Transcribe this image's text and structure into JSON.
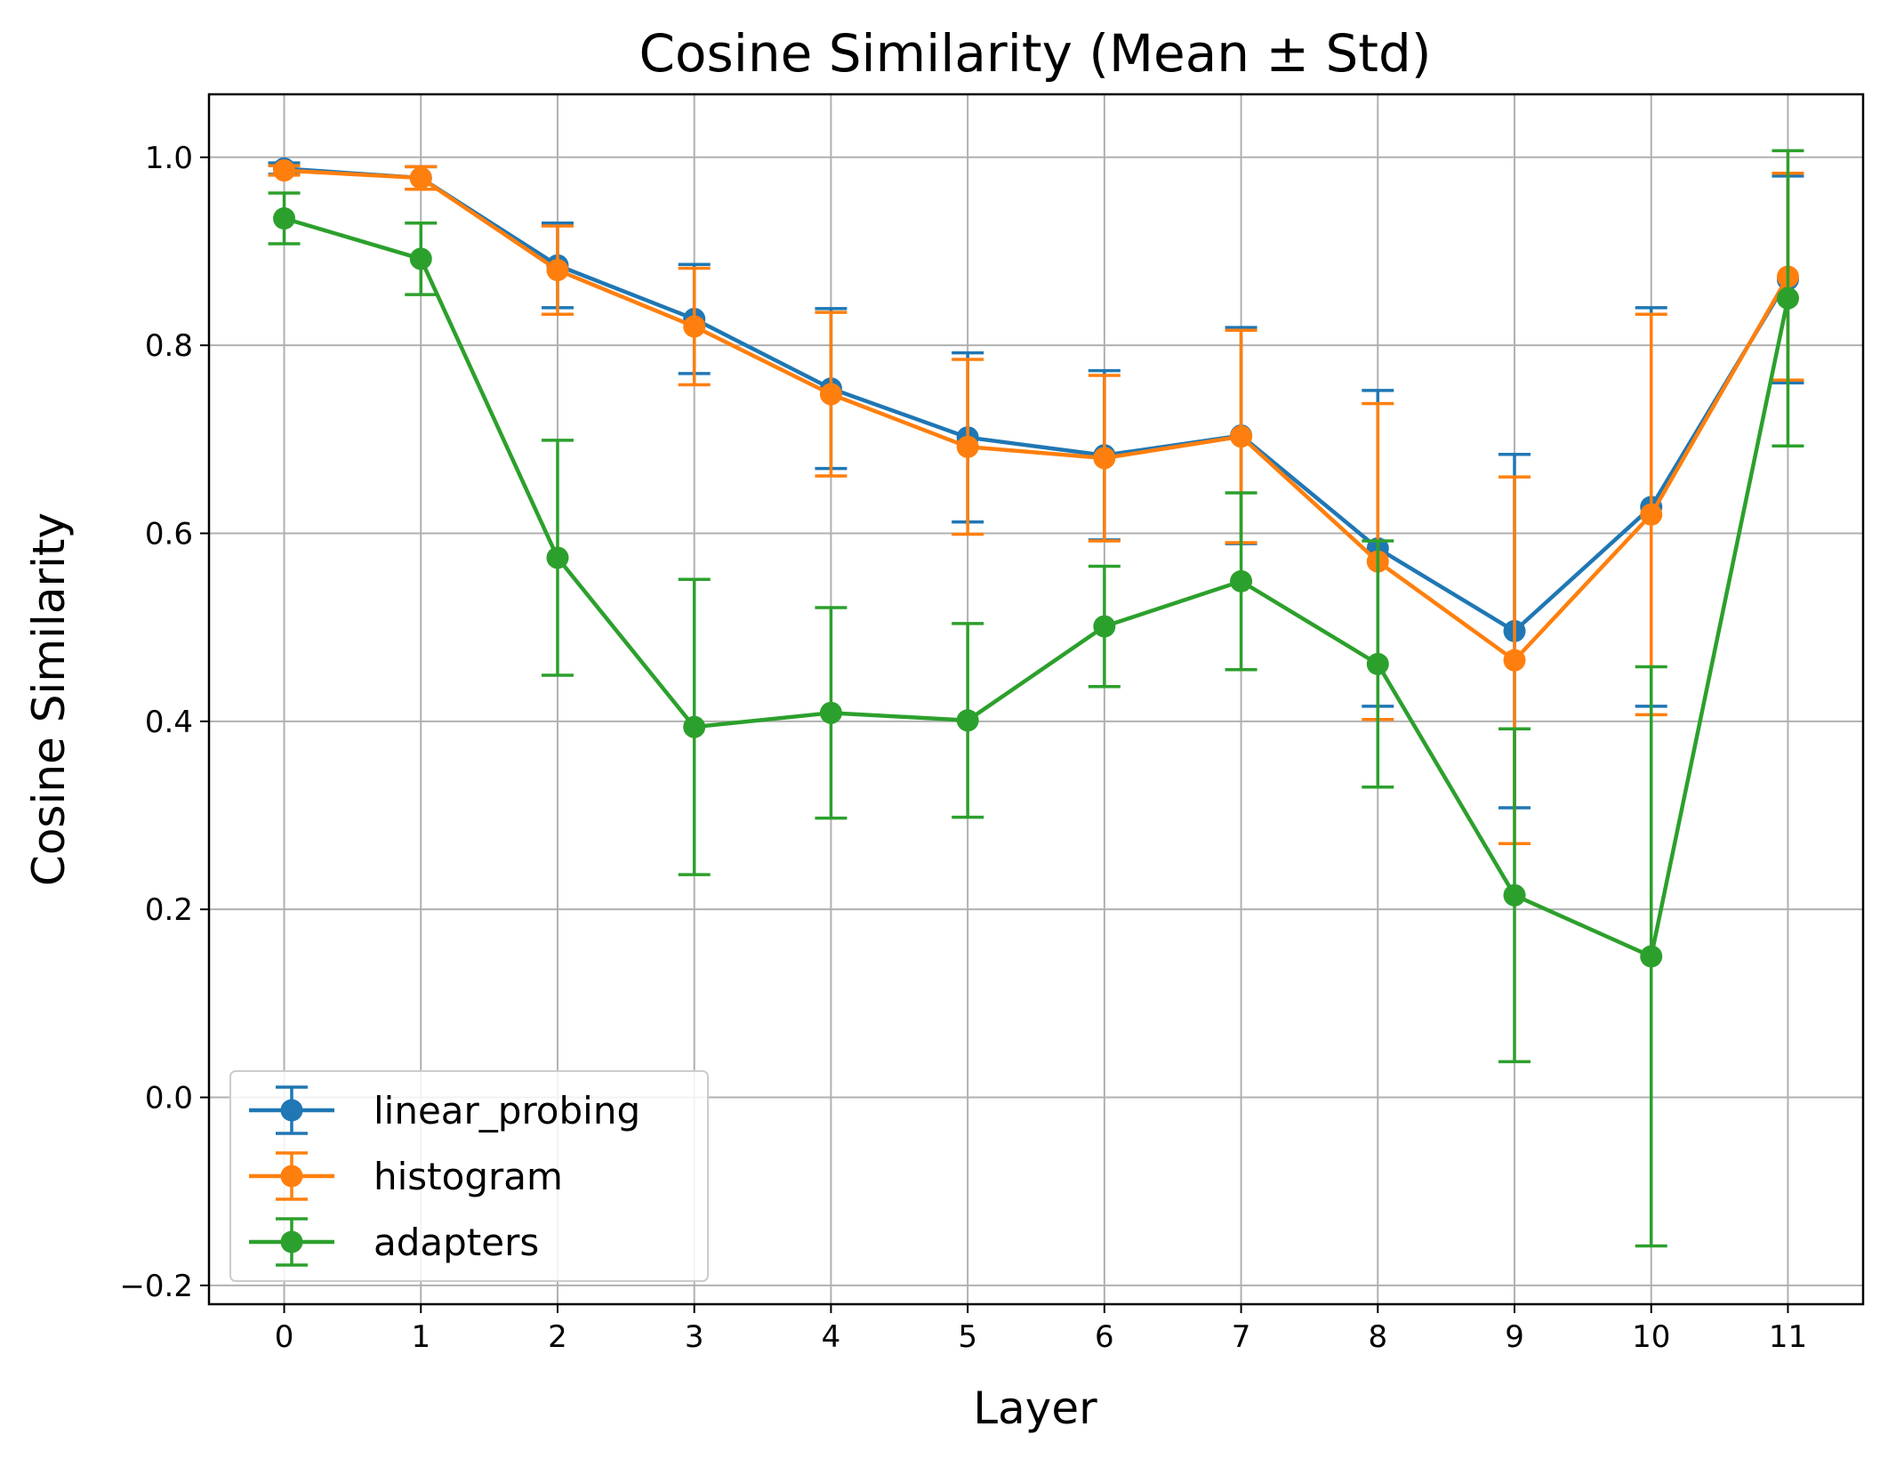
{
  "chart_data": {
    "type": "line",
    "title": "Cosine Similarity (Mean ± Std)",
    "xlabel": "Layer",
    "ylabel": "Cosine Similarity",
    "x": [
      0,
      1,
      2,
      3,
      4,
      5,
      6,
      7,
      8,
      9,
      10,
      11
    ],
    "xlim": [
      -0.55,
      11.55
    ],
    "ylim": [
      -0.22,
      1.067
    ],
    "yticks": [
      -0.2,
      0.0,
      0.2,
      0.4,
      0.6,
      0.8,
      1.0
    ],
    "ytick_labels": [
      "−0.2",
      "0.0",
      "0.2",
      "0.4",
      "0.6",
      "0.8",
      "1.0"
    ],
    "xtick_labels": [
      "0",
      "1",
      "2",
      "3",
      "4",
      "5",
      "6",
      "7",
      "8",
      "9",
      "10",
      "11"
    ],
    "grid": true,
    "legend_position": "lower-left",
    "series": [
      {
        "name": "linear_probing",
        "color": "#1f77b4",
        "mean": [
          0.988,
          0.978,
          0.885,
          0.828,
          0.754,
          0.702,
          0.683,
          0.704,
          0.584,
          0.496,
          0.628,
          0.87
        ],
        "std": [
          0.006,
          0.012,
          0.045,
          0.058,
          0.085,
          0.09,
          0.09,
          0.115,
          0.168,
          0.188,
          0.212,
          0.11
        ]
      },
      {
        "name": "histogram",
        "color": "#ff7f0e",
        "mean": [
          0.986,
          0.978,
          0.88,
          0.82,
          0.748,
          0.692,
          0.68,
          0.703,
          0.57,
          0.465,
          0.62,
          0.873
        ],
        "std": [
          0.005,
          0.012,
          0.047,
          0.062,
          0.087,
          0.093,
          0.088,
          0.113,
          0.168,
          0.195,
          0.213,
          0.11
        ]
      },
      {
        "name": "adapters",
        "color": "#2ca02c",
        "mean": [
          0.935,
          0.892,
          0.574,
          0.394,
          0.409,
          0.401,
          0.501,
          0.549,
          0.461,
          0.215,
          0.15,
          0.85
        ],
        "std": [
          0.027,
          0.038,
          0.125,
          0.157,
          0.112,
          0.103,
          0.064,
          0.094,
          0.131,
          0.177,
          0.308,
          0.157
        ]
      }
    ]
  }
}
